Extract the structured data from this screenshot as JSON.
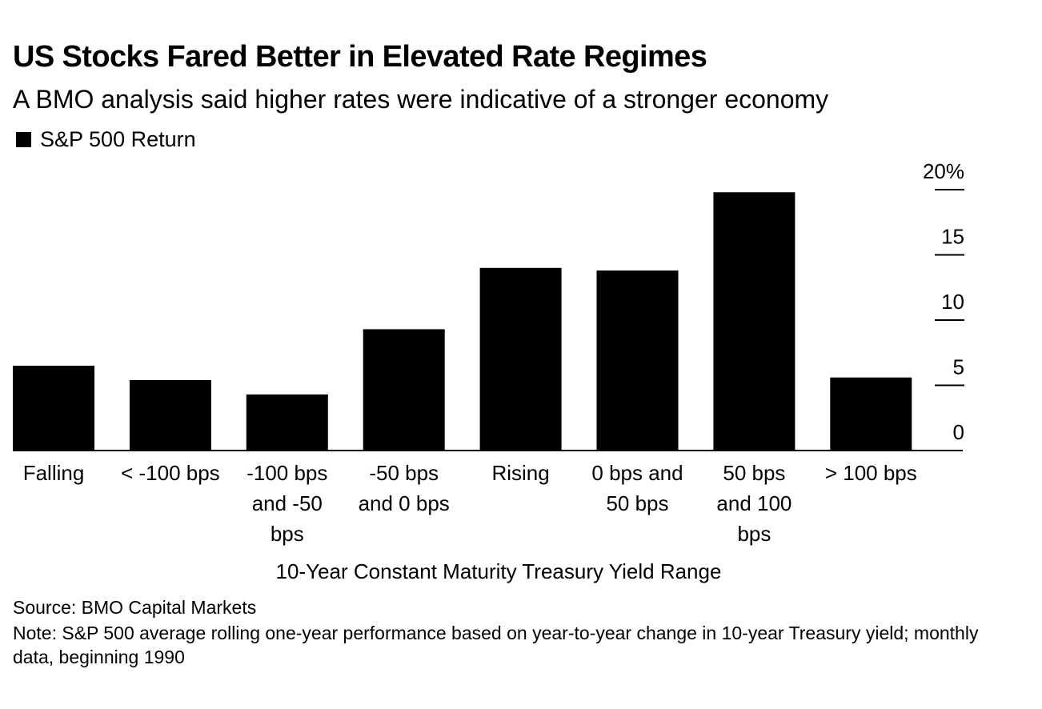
{
  "header": {
    "title": "US Stocks Fared Better in Elevated Rate Regimes",
    "subtitle": "A BMO analysis said higher rates were indicative of a stronger economy"
  },
  "legend": {
    "label": "S&P 500 Return",
    "color": "#000000"
  },
  "chart_data": {
    "type": "bar",
    "categories": [
      [
        "Falling"
      ],
      [
        "< -100 bps"
      ],
      [
        "-100 bps",
        "and -50",
        "bps"
      ],
      [
        "-50 bps",
        "and 0 bps"
      ],
      [
        "Rising"
      ],
      [
        "0 bps and",
        "50 bps"
      ],
      [
        "50 bps",
        "and 100",
        "bps"
      ],
      [
        "> 100 bps"
      ]
    ],
    "series": [
      {
        "name": "S&P 500 Return",
        "color": "#000000",
        "values": [
          6.5,
          5.4,
          4.3,
          9.3,
          14.0,
          13.8,
          19.8,
          5.6
        ]
      }
    ],
    "y_ticks": [
      {
        "value": 0,
        "label": "0"
      },
      {
        "value": 5,
        "label": "5"
      },
      {
        "value": 10,
        "label": "10"
      },
      {
        "value": 15,
        "label": "15"
      },
      {
        "value": 20,
        "label": "20%"
      }
    ],
    "ylim": [
      0,
      20
    ],
    "xlabel": "10-Year Constant Maturity Treasury Yield Range",
    "ylabel": "",
    "y_axis_side": "right",
    "legend_position": "top-left"
  },
  "footer": {
    "source": "Source: BMO Capital Markets",
    "note": "Note: S&P 500 average rolling one-year performance based on year-to-year change in 10-year Treasury yield; monthly data, beginning 1990"
  }
}
